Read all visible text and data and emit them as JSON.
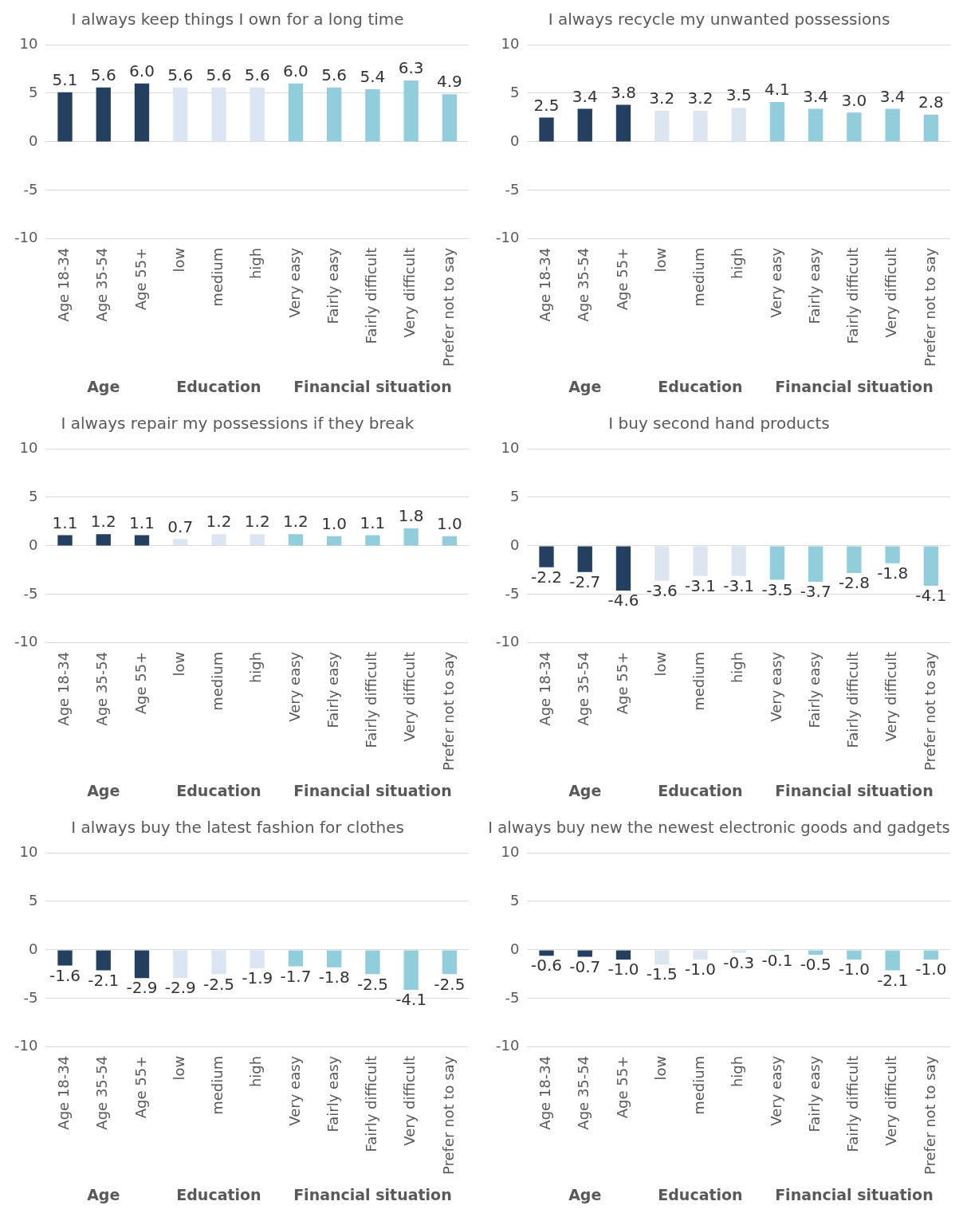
{
  "chart_data": [
    {
      "type": "bar",
      "title": "I always keep things I own for a long time",
      "categories": [
        "Age 18-34",
        "Age 35-54",
        "Age 55+",
        "low",
        "medium",
        "high",
        "Very easy",
        "Fairly easy",
        "Fairly difficult",
        "Very difficult",
        "Prefer not to say"
      ],
      "values": [
        5.1,
        5.6,
        6.0,
        5.6,
        5.6,
        5.6,
        6.0,
        5.6,
        5.4,
        6.3,
        4.9
      ],
      "value_labels": [
        "5.1",
        "5.6",
        "6.0",
        "5.6",
        "5.6",
        "5.6",
        "6.0",
        "5.6",
        "5.4",
        "6.3",
        "4.9"
      ],
      "colors": [
        "#243f60",
        "#243f60",
        "#243f60",
        "#dce6f2",
        "#dce6f2",
        "#dce6f2",
        "#92cddc",
        "#92cddc",
        "#92cddc",
        "#92cddc",
        "#92cddc"
      ],
      "ylim": [
        -10,
        10
      ],
      "yticks": [
        -10,
        -5,
        0,
        5,
        10
      ],
      "grid": "y",
      "legend": false,
      "annotations": [
        "Age",
        "Education",
        "Financial situation"
      ]
    },
    {
      "type": "bar",
      "title": "I always recycle my unwanted possessions",
      "categories": [
        "Age 18-34",
        "Age 35-54",
        "Age 55+",
        "low",
        "medium",
        "high",
        "Very easy",
        "Fairly easy",
        "Fairly difficult",
        "Very difficult",
        "Prefer not to say"
      ],
      "values": [
        2.5,
        3.4,
        3.8,
        3.2,
        3.2,
        3.5,
        4.1,
        3.4,
        3.0,
        3.4,
        2.8
      ],
      "value_labels": [
        "2.5",
        "3.4",
        "3.8",
        "3.2",
        "3.2",
        "3.5",
        "4.1",
        "3.4",
        "3.0",
        "3.4",
        "2.8"
      ],
      "colors": [
        "#243f60",
        "#243f60",
        "#243f60",
        "#dce6f2",
        "#dce6f2",
        "#dce6f2",
        "#92cddc",
        "#92cddc",
        "#92cddc",
        "#92cddc",
        "#92cddc"
      ],
      "ylim": [
        -10,
        10
      ],
      "yticks": [
        -10,
        -5,
        0,
        5,
        10
      ],
      "grid": "y",
      "legend": false,
      "annotations": [
        "Age",
        "Education",
        "Financial situation"
      ]
    },
    {
      "type": "bar",
      "title": "I always repair my possessions if they break",
      "categories": [
        "Age 18-34",
        "Age 35-54",
        "Age 55+",
        "low",
        "medium",
        "high",
        "Very easy",
        "Fairly easy",
        "Fairly difficult",
        "Very difficult",
        "Prefer not to say"
      ],
      "values": [
        1.1,
        1.2,
        1.1,
        0.7,
        1.2,
        1.2,
        1.2,
        1.0,
        1.1,
        1.8,
        1.0
      ],
      "value_labels": [
        "1.1",
        "1.2",
        "1.1",
        "0.7",
        "1.2",
        "1.2",
        "1.2",
        "1.0",
        "1.1",
        "1.8",
        "1.0"
      ],
      "colors": [
        "#243f60",
        "#243f60",
        "#243f60",
        "#dce6f2",
        "#dce6f2",
        "#dce6f2",
        "#92cddc",
        "#92cddc",
        "#92cddc",
        "#92cddc",
        "#92cddc"
      ],
      "ylim": [
        -10,
        10
      ],
      "yticks": [
        -10,
        -5,
        0,
        5,
        10
      ],
      "grid": "y",
      "legend": false,
      "annotations": [
        "Age",
        "Education",
        "Financial situation"
      ]
    },
    {
      "type": "bar",
      "title": "I buy second hand products",
      "categories": [
        "Age 18-34",
        "Age 35-54",
        "Age 55+",
        "low",
        "medium",
        "high",
        "Very easy",
        "Fairly easy",
        "Fairly difficult",
        "Very difficult",
        "Prefer not to say"
      ],
      "values": [
        -2.2,
        -2.7,
        -4.6,
        -3.6,
        -3.1,
        -3.1,
        -3.5,
        -3.7,
        -2.8,
        -1.8,
        -4.1
      ],
      "value_labels": [
        "-2.2",
        "-2.7",
        "-4.6",
        "-3.6",
        "-3.1",
        "-3.1",
        "-3.5",
        "-3.7",
        "-2.8",
        "-1.8",
        "-4.1"
      ],
      "colors": [
        "#243f60",
        "#243f60",
        "#243f60",
        "#dce6f2",
        "#dce6f2",
        "#dce6f2",
        "#92cddc",
        "#92cddc",
        "#92cddc",
        "#92cddc",
        "#92cddc"
      ],
      "ylim": [
        -10,
        10
      ],
      "yticks": [
        -10,
        -5,
        0,
        5,
        10
      ],
      "grid": "y",
      "legend": false,
      "annotations": [
        "Age",
        "Education",
        "Financial situation"
      ]
    },
    {
      "type": "bar",
      "title": "I always buy the latest fashion for clothes",
      "categories": [
        "Age 18-34",
        "Age 35-54",
        "Age 55+",
        "low",
        "medium",
        "high",
        "Very easy",
        "Fairly easy",
        "Fairly difficult",
        "Very difficult",
        "Prefer not to say"
      ],
      "values": [
        -1.6,
        -2.1,
        -2.9,
        -2.9,
        -2.5,
        -1.9,
        -1.7,
        -1.8,
        -2.5,
        -4.1,
        -2.5
      ],
      "value_labels": [
        "-1.6",
        "-2.1",
        "-2.9",
        "-2.9",
        "-2.5",
        "-1.9",
        "-1.7",
        "-1.8",
        "-2.5",
        "-4.1",
        "-2.5"
      ],
      "colors": [
        "#243f60",
        "#243f60",
        "#243f60",
        "#dce6f2",
        "#dce6f2",
        "#dce6f2",
        "#92cddc",
        "#92cddc",
        "#92cddc",
        "#92cddc",
        "#92cddc"
      ],
      "ylim": [
        -10,
        10
      ],
      "yticks": [
        -10,
        -5,
        0,
        5,
        10
      ],
      "grid": "y",
      "legend": false,
      "annotations": [
        "Age",
        "Education",
        "Financial situation"
      ]
    },
    {
      "type": "bar",
      "title": "I always buy new the newest electronic goods and gadgets",
      "categories": [
        "Age 18-34",
        "Age 35-54",
        "Age 55+",
        "low",
        "medium",
        "high",
        "Very easy",
        "Fairly easy",
        "Fairly difficult",
        "Very difficult",
        "Prefer not to say"
      ],
      "values": [
        -0.6,
        -0.7,
        -1.0,
        -1.5,
        -1.0,
        -0.3,
        -0.1,
        -0.5,
        -1.0,
        -2.1,
        -1.0
      ],
      "value_labels": [
        "-0.6",
        "-0.7",
        "-1.0",
        "-1.5",
        "-1.0",
        "-0.3",
        "-0.1",
        "-0.5",
        "-1.0",
        "-2.1",
        "-1.0"
      ],
      "colors": [
        "#243f60",
        "#243f60",
        "#243f60",
        "#dce6f2",
        "#dce6f2",
        "#dce6f2",
        "#92cddc",
        "#92cddc",
        "#92cddc",
        "#92cddc",
        "#92cddc"
      ],
      "ylim": [
        -10,
        10
      ],
      "yticks": [
        -10,
        -5,
        0,
        5,
        10
      ],
      "grid": "y",
      "legend": false,
      "annotations": [
        "Age",
        "Education",
        "Financial situation"
      ]
    }
  ]
}
